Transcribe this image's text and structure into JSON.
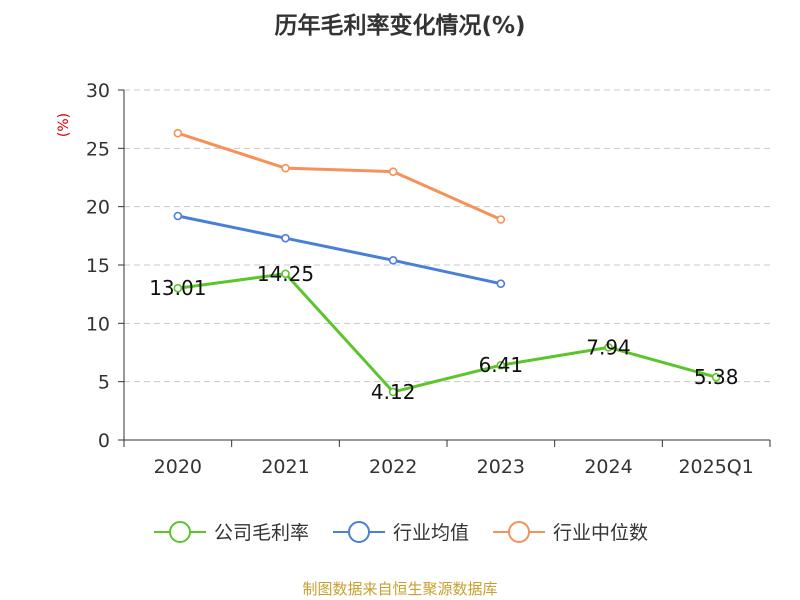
{
  "chart_data": {
    "type": "line",
    "title": "历年毛利率变化情况(%)",
    "ylabel": "(%)",
    "xlabel": "",
    "categories": [
      "2020",
      "2021",
      "2022",
      "2023",
      "2024",
      "2025Q1"
    ],
    "ylim": [
      0,
      30
    ],
    "yticks": [
      0,
      5,
      10,
      15,
      20,
      25,
      30
    ],
    "grid": true,
    "legend_position": "bottom",
    "series": [
      {
        "name": "公司毛利率",
        "color": "#5cc52a",
        "values": [
          13.01,
          14.25,
          4.12,
          6.41,
          7.94,
          5.38
        ],
        "value_labels": [
          "13.01",
          "14.25",
          "4.12",
          "6.41",
          "7.94",
          "5.38"
        ]
      },
      {
        "name": "行业均值",
        "color": "#4a7fd8",
        "values": [
          19.2,
          17.3,
          15.4,
          13.4,
          null,
          null
        ]
      },
      {
        "name": "行业中位数",
        "color": "#f5915a",
        "values": [
          26.3,
          23.3,
          23.0,
          18.9,
          null,
          null
        ]
      }
    ],
    "source": "制图数据来自恒生聚源数据库"
  }
}
